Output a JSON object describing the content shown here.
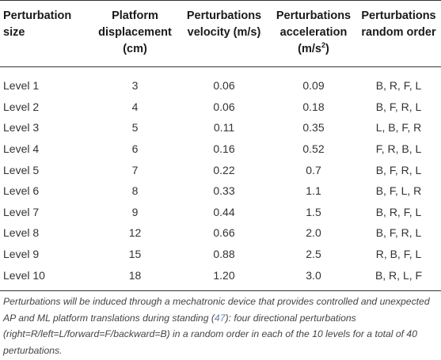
{
  "table": {
    "headers": [
      {
        "l1": "Perturbation",
        "l2": "size",
        "l3": "",
        "sup": ""
      },
      {
        "l1": "Platform",
        "l2": "displacement",
        "l3": "(cm)",
        "sup": ""
      },
      {
        "l1": "Perturbations",
        "l2": "velocity (m/s)",
        "l3": "",
        "sup": ""
      },
      {
        "l1": "Perturbations",
        "l2": "acceleration",
        "l3": "(m/s",
        "sup": "2",
        "tail": ")"
      },
      {
        "l1": "Perturbations",
        "l2": "random order",
        "l3": "",
        "sup": ""
      }
    ],
    "rows": [
      [
        "Level 1",
        "3",
        "0.06",
        "0.09",
        "B, R, F, L"
      ],
      [
        "Level 2",
        "4",
        "0.06",
        "0.18",
        "B, F, R, L"
      ],
      [
        "Level 3",
        "5",
        "0.11",
        "0.35",
        "L, B, F, R"
      ],
      [
        "Level 4",
        "6",
        "0.16",
        "0.52",
        "F, R, B, L"
      ],
      [
        "Level 5",
        "7",
        "0.22",
        "0.7",
        "B, F, R, L"
      ],
      [
        "Level 6",
        "8",
        "0.33",
        "1.1",
        "B, F, L, R"
      ],
      [
        "Level 7",
        "9",
        "0.44",
        "1.5",
        "B, R, F, L"
      ],
      [
        "Level 8",
        "12",
        "0.66",
        "2.0",
        "B, F, R, L"
      ],
      [
        "Level 9",
        "15",
        "0.88",
        "2.5",
        "R, B, F, L"
      ],
      [
        "Level 10",
        "18",
        "1.20",
        "3.0",
        "B, R, L, F"
      ]
    ]
  },
  "footnote": {
    "before": "Perturbations will be induced through a mechatronic device that provides controlled and unexpected AP and ML platform translations during standing (",
    "ref": "47",
    "after": "): four directional perturbations (right=R/left=L/forward=F/backward=B) in a random order in each of the 10 levels for a total of 40 perturbations."
  }
}
